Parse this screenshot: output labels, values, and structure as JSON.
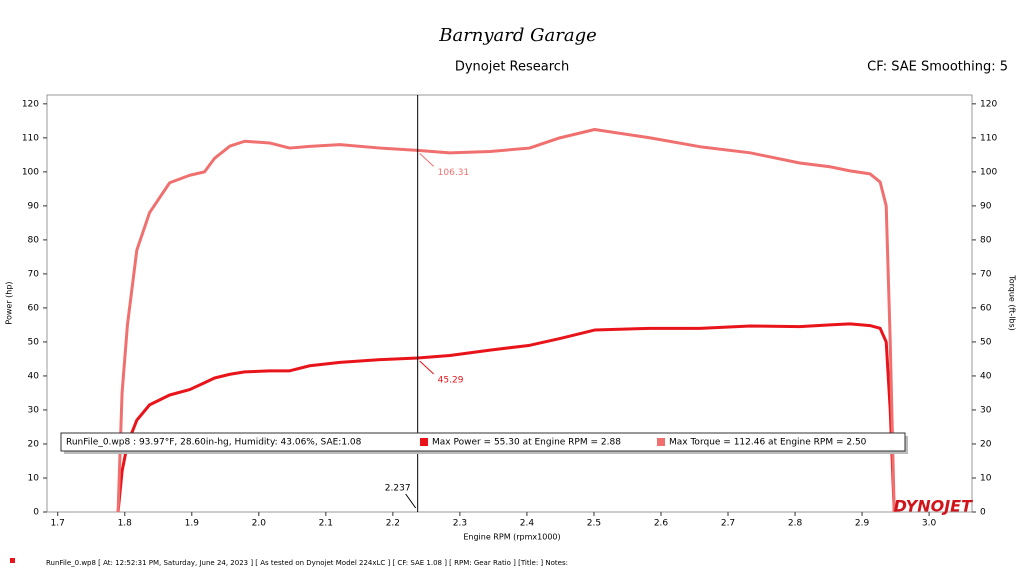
{
  "header": {
    "logo": "Barnyard Garage",
    "title": "Dynojet Research",
    "settings": "CF: SAE Smoothing: 5"
  },
  "chart_data": {
    "type": "line",
    "xlabel": "Engine RPM (rpmx1000)",
    "ylabel": "Power (hp)",
    "y2label": "Torque (ft-lbs)",
    "x": [
      1.79,
      1.796,
      1.804,
      1.818,
      1.837,
      1.867,
      1.897,
      1.919,
      1.934,
      1.957,
      1.979,
      2.016,
      2.046,
      2.076,
      2.121,
      2.181,
      2.237,
      2.285,
      2.345,
      2.404,
      2.449,
      2.501,
      2.584,
      2.658,
      2.733,
      2.807,
      2.852,
      2.882,
      2.912,
      2.927,
      2.936,
      2.942,
      2.948
    ],
    "series": [
      {
        "name": "Max Power = 55.30 at Engine RPM = 2.88",
        "color": "#e8141a",
        "values": [
          0,
          12,
          20,
          27,
          31.5,
          34.4,
          36,
          38,
          39.4,
          40.5,
          41.2,
          41.5,
          41.5,
          43,
          44,
          44.8,
          45.29,
          46,
          47.6,
          49,
          51,
          53.5,
          54,
          54,
          54.7,
          54.5,
          55,
          55.3,
          54.8,
          54,
          50,
          30,
          0
        ]
      },
      {
        "name": "Max Torque = 112.46 at Engine RPM = 2.50",
        "color": "#f07070",
        "axis": "y2",
        "values": [
          0,
          35,
          55,
          77,
          88,
          96.8,
          99,
          100,
          104,
          107.6,
          109,
          108.5,
          107,
          107.5,
          108,
          107,
          106.31,
          105.6,
          106,
          107,
          110,
          112.46,
          110,
          107.4,
          105.6,
          102.6,
          101.5,
          100.3,
          99.4,
          97,
          90,
          50,
          0
        ]
      }
    ],
    "run_info": "RunFile_0.wp8  : 93.97°F, 28.60in-hg, Humidity: 43.06%, SAE:1.08",
    "xlim": [
      1.684,
      3.064
    ],
    "xticks": [
      1.7,
      1.8,
      1.9,
      {
        "value": 2,
        "label": "2.0"
      },
      2.1,
      2.2,
      2.3,
      2.4,
      2.5,
      2.6,
      2.7,
      2.8,
      2.9,
      {
        "value": 3,
        "label": "3.0"
      }
    ],
    "ylim": [
      0,
      122.6
    ],
    "yticks": [
      0,
      10,
      20,
      30,
      40,
      50,
      60,
      70,
      80,
      90,
      100,
      110,
      120
    ],
    "y2lim": [
      0,
      122.6
    ],
    "y2ticks": [
      0,
      10,
      20,
      30,
      40,
      50,
      60,
      70,
      80,
      90,
      100,
      110,
      120
    ],
    "cursor_index": 16,
    "brand": "DYNOJET"
  },
  "footer": "RunFile_0.wp8 [ At: 12:52:31 PM, Saturday, June 24, 2023 ] [ As tested on Dynojet Model 224xLC ] [ CF: SAE 1.08 ] [ RPM: Gear Ratio ] [Title: ]  Notes:"
}
